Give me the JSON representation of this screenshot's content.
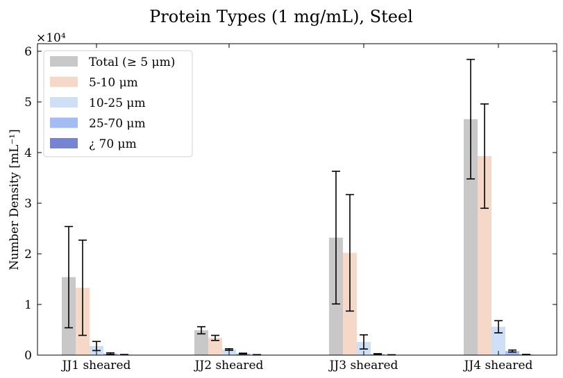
{
  "chart_data": {
    "type": "bar",
    "title": "Protein Types (1 mg/mL), Steel",
    "ylabel": "Number Density [mL⁻¹]",
    "xlabel": "",
    "y_multiplier_label": "×10⁴",
    "ylim": [
      0,
      61500
    ],
    "yticks": [
      0,
      10000,
      20000,
      30000,
      40000,
      50000,
      60000
    ],
    "ytick_labels": [
      "0",
      "1",
      "2",
      "3",
      "4",
      "5",
      "6"
    ],
    "categories": [
      "JJ1 sheared",
      "JJ2 sheared",
      "JJ3 sheared",
      "JJ4 sheared"
    ],
    "legend_position": "top-left",
    "grid": false,
    "series": [
      {
        "name": "Total (≥ 5 μm)",
        "color": "#c8c8c8",
        "values": [
          15400,
          4900,
          23200,
          46600
        ],
        "errors": [
          10000,
          700,
          13100,
          11800
        ]
      },
      {
        "name": "5-10 μm",
        "color": "#f6d8c8",
        "values": [
          13300,
          3400,
          20200,
          39300
        ],
        "errors": [
          9400,
          500,
          11500,
          10300
        ]
      },
      {
        "name": "10-25 μm",
        "color": "#cfdff5",
        "values": [
          1800,
          1100,
          2600,
          5600
        ],
        "errors": [
          900,
          150,
          1400,
          1200
        ]
      },
      {
        "name": "25-70 μm",
        "color": "#a3bcf3",
        "values": [
          300,
          300,
          200,
          800
        ],
        "errors": [
          150,
          80,
          80,
          200
        ]
      },
      {
        "name": "¿ 70 μm",
        "color": "#7783d3",
        "values": [
          80,
          60,
          50,
          100
        ],
        "errors": [
          40,
          30,
          20,
          40
        ]
      }
    ]
  }
}
